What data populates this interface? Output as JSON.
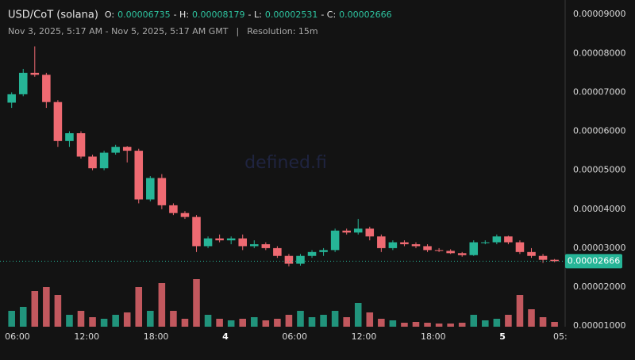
{
  "header": {
    "title": "USD/CoT (solana)",
    "ohlc": [
      {
        "label": "O:",
        "value": "0.00006735"
      },
      {
        "label": "- H:",
        "value": "0.00008179"
      },
      {
        "label": "- L:",
        "value": "0.00002531"
      },
      {
        "label": "- C:",
        "value": "0.00002666"
      }
    ],
    "range": "Nov 3, 2025, 5:17 AM - Nov 5, 2025, 5:17 AM GMT",
    "separator": "|",
    "resolution": "Resolution: 15m"
  },
  "chart_data": {
    "type": "candlestick",
    "watermark": "defined.fi",
    "up_color": "#26b597",
    "down_color": "#ef6a72",
    "grid": true,
    "x": [
      5,
      6,
      7,
      8,
      9,
      10,
      11,
      12,
      13,
      14,
      15,
      16,
      17,
      18,
      19,
      20,
      21,
      22,
      23,
      24,
      25,
      26,
      27,
      28,
      29,
      30,
      31,
      32,
      33,
      34,
      35,
      36,
      37,
      38,
      39,
      40,
      41,
      42,
      43,
      44,
      45,
      46,
      47,
      48,
      49,
      50,
      51,
      52
    ],
    "open": [
      6.735e-05,
      6.95e-05,
      7.5e-05,
      7.45e-05,
      6.75e-05,
      5.75e-05,
      5.95e-05,
      5.35e-05,
      5.05e-05,
      5.45e-05,
      5.6e-05,
      5.5e-05,
      4.25e-05,
      4.8e-05,
      4.1e-05,
      3.9e-05,
      3.8e-05,
      3.05e-05,
      3.25e-05,
      3.2e-05,
      3.25e-05,
      3.05e-05,
      3.1e-05,
      3e-05,
      2.8e-05,
      2.6e-05,
      2.8e-05,
      2.9e-05,
      2.95e-05,
      3.45e-05,
      3.4e-05,
      3.5e-05,
      3.3e-05,
      3e-05,
      3.15e-05,
      3.1e-05,
      3.05e-05,
      2.95e-05,
      2.93e-05,
      2.87e-05,
      2.82e-05,
      3.15e-05,
      3.15e-05,
      3.3e-05,
      3.15e-05,
      2.9e-05,
      2.8e-05,
      2.7e-05
    ],
    "high": [
      7e-05,
      7.6e-05,
      8.179e-05,
      7.5e-05,
      6.8e-05,
      6e-05,
      6e-05,
      5.4e-05,
      5.5e-05,
      5.65e-05,
      5.62e-05,
      5.55e-05,
      4.85e-05,
      4.9e-05,
      4.15e-05,
      3.95e-05,
      3.85e-05,
      3.3e-05,
      3.35e-05,
      3.3e-05,
      3.35e-05,
      3.2e-05,
      3.15e-05,
      3.05e-05,
      2.85e-05,
      2.85e-05,
      2.95e-05,
      3e-05,
      3.5e-05,
      3.5e-05,
      3.75e-05,
      3.55e-05,
      3.35e-05,
      3.2e-05,
      3.2e-05,
      3.15e-05,
      3.1e-05,
      3e-05,
      2.97e-05,
      2.9e-05,
      3.2e-05,
      3.2e-05,
      3.35e-05,
      3.32e-05,
      3.2e-05,
      3e-05,
      2.85e-05,
      2.72e-05
    ],
    "low": [
      6.6e-05,
      6.9e-05,
      7.4e-05,
      6.6e-05,
      5.6e-05,
      5.6e-05,
      5.3e-05,
      5e-05,
      5e-05,
      5.4e-05,
      5.2e-05,
      4.15e-05,
      4.2e-05,
      4e-05,
      3.85e-05,
      3.75e-05,
      2.9e-05,
      3e-05,
      3.15e-05,
      3.1e-05,
      2.95e-05,
      3e-05,
      2.95e-05,
      2.75e-05,
      2.531e-05,
      2.55e-05,
      2.75e-05,
      2.8e-05,
      2.9e-05,
      3.35e-05,
      3.35e-05,
      3.2e-05,
      2.9e-05,
      2.95e-05,
      3.05e-05,
      3e-05,
      2.9e-05,
      2.9e-05,
      2.85e-05,
      2.78e-05,
      2.8e-05,
      3.1e-05,
      3.1e-05,
      3.1e-05,
      2.85e-05,
      2.75e-05,
      2.62e-05,
      2.64e-05
    ],
    "close": [
      6.95e-05,
      7.5e-05,
      7.45e-05,
      6.75e-05,
      5.75e-05,
      5.95e-05,
      5.35e-05,
      5.05e-05,
      5.45e-05,
      5.6e-05,
      5.5e-05,
      4.25e-05,
      4.8e-05,
      4.1e-05,
      3.9e-05,
      3.8e-05,
      3.05e-05,
      3.25e-05,
      3.2e-05,
      3.25e-05,
      3.05e-05,
      3.1e-05,
      3e-05,
      2.8e-05,
      2.6e-05,
      2.8e-05,
      2.9e-05,
      2.95e-05,
      3.45e-05,
      3.4e-05,
      3.5e-05,
      3.3e-05,
      3e-05,
      3.15e-05,
      3.1e-05,
      3.05e-05,
      2.95e-05,
      2.93e-05,
      2.87e-05,
      2.82e-05,
      3.15e-05,
      3.15e-05,
      3.3e-05,
      3.15e-05,
      2.9e-05,
      2.8e-05,
      2.7e-05,
      2.666e-05
    ],
    "volume": [
      20,
      25,
      45,
      50,
      40,
      15,
      20,
      12,
      10,
      15,
      18,
      50,
      20,
      55,
      20,
      10,
      60,
      15,
      10,
      8,
      10,
      12,
      8,
      10,
      15,
      20,
      12,
      15,
      20,
      12,
      30,
      18,
      10,
      8,
      5,
      6,
      5,
      4,
      4,
      5,
      15,
      8,
      10,
      15,
      40,
      22,
      12,
      6
    ],
    "last_price": 2.666e-05,
    "xlim": [
      4.49,
      53.42
    ],
    "xticks": [
      {
        "value": 6,
        "label": "06:00"
      },
      {
        "value": 12,
        "label": "12:00"
      },
      {
        "value": 18,
        "label": "18:00"
      },
      {
        "value": 24,
        "label": "4"
      },
      {
        "value": 30,
        "label": "06:00"
      },
      {
        "value": 36,
        "label": "12:00"
      },
      {
        "value": 42,
        "label": "18:00"
      },
      {
        "value": 48,
        "label": "5"
      },
      {
        "value": 53,
        "label": "05:"
      }
    ],
    "ylim": [
      9.83e-06,
      9.37e-05
    ],
    "yticks": [
      {
        "value": 1e-05,
        "label": "0.00001000"
      },
      {
        "value": 2e-05,
        "label": "0.00002000"
      },
      {
        "value": 3e-05,
        "label": "0.00003000"
      },
      {
        "value": 4e-05,
        "label": "0.00004000"
      },
      {
        "value": 5e-05,
        "label": "0.00005000"
      },
      {
        "value": 6e-05,
        "label": "0.00006000"
      },
      {
        "value": 7e-05,
        "label": "0.00007000"
      },
      {
        "value": 8e-05,
        "label": "0.00008000"
      },
      {
        "value": 9e-05,
        "label": "0.00009000"
      }
    ]
  }
}
